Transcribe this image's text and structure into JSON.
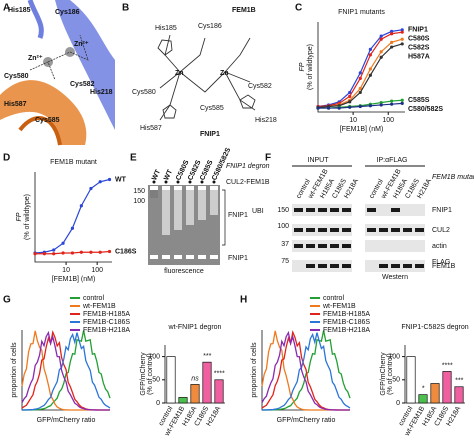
{
  "panel_letters": [
    "A",
    "B",
    "C",
    "D",
    "E",
    "F",
    "G",
    "H"
  ],
  "structure": {
    "labels": [
      "His185",
      "Cys186",
      "Zn²⁺",
      "Zn²⁺",
      "His218",
      "Cys580",
      "His587",
      "Cys582",
      "Cys585"
    ]
  },
  "scheme": {
    "fem1b": "FEM1B",
    "fnip1": "FNIP1",
    "zn": [
      "Zn",
      "Zn"
    ],
    "labels": [
      "His185",
      "Cys186",
      "Cys580",
      "Cys582",
      "Cys585",
      "His587",
      "His218"
    ]
  },
  "chart_data": [
    {
      "type": "line",
      "title": "FNIP1 mutants",
      "ylabel": "FP",
      "ylabel_sub": "(% of wildtype)",
      "xlabel": "[FEM1B] (nM)",
      "log_x": true,
      "xlim": [
        1,
        300
      ],
      "xticks": [
        10,
        100
      ],
      "ylim": [
        -5,
        110
      ],
      "x": [
        1,
        2,
        4,
        8,
        16,
        31,
        63,
        125,
        250
      ],
      "series": [
        {
          "name": "FNIP1",
          "color": "#2a45d8",
          "values": [
            2,
            4,
            8,
            20,
            45,
            75,
            92,
            98,
            100
          ]
        },
        {
          "name": "C580S",
          "color": "#e0241c",
          "values": [
            2,
            3,
            6,
            15,
            38,
            68,
            88,
            95,
            97
          ]
        },
        {
          "name": "C582S",
          "color": "#ef7a1e",
          "values": [
            1,
            2,
            4,
            10,
            25,
            50,
            72,
            84,
            88
          ]
        },
        {
          "name": "H587A",
          "color": "#333333",
          "values": [
            1,
            2,
            3,
            8,
            20,
            42,
            65,
            78,
            82
          ]
        },
        {
          "name": "C585S",
          "color": "#22a032",
          "values": [
            0,
            0,
            1,
            2,
            3,
            5,
            7,
            9,
            10
          ]
        },
        {
          "name": "C580/582S",
          "color": "#1d2f86",
          "values": [
            0,
            0,
            0,
            1,
            2,
            3,
            4,
            5,
            6
          ]
        }
      ]
    },
    {
      "type": "line",
      "title": "FEM1B mutant",
      "ylabel": "FP",
      "ylabel_sub": "(% of wildtype)",
      "xlabel": "[FEM1B] (nM)",
      "log_x": true,
      "xlim": [
        1,
        300
      ],
      "xticks": [
        10,
        100
      ],
      "ylim": [
        -10,
        110
      ],
      "x": [
        1,
        2,
        4,
        8,
        16,
        31,
        63,
        125,
        250
      ],
      "series": [
        {
          "name": "WT",
          "color": "#2a45d8",
          "values": [
            2,
            3,
            6,
            15,
            35,
            65,
            88,
            97,
            100
          ]
        },
        {
          "name": "C186S",
          "color": "#e0241c",
          "values": [
            1,
            1,
            1,
            2,
            2,
            3,
            3,
            3,
            4
          ]
        }
      ]
    },
    {
      "type": "bar",
      "title": "wt-FNIP1 degron",
      "ylabel": "GFP/mCherry",
      "ylabel_sub": "(% of control)",
      "categories": [
        "control",
        "wt-FEM1B",
        "H185A",
        "C186S",
        "H218A"
      ],
      "colors": [
        "#ffffff",
        "#4cc04c",
        "#f08a3c",
        "#f060a0",
        "#f060a0"
      ],
      "values": [
        100,
        12,
        40,
        88,
        50
      ],
      "annotations": [
        null,
        null,
        "ns",
        "***",
        "****"
      ],
      "ylim": [
        0,
        125
      ],
      "yticks": [
        0,
        50,
        100
      ]
    },
    {
      "type": "bar",
      "title": "FNIP1-C582S degron",
      "ylabel": "GFP/mCherry",
      "ylabel_sub": "(% of control)",
      "categories": [
        "control",
        "wt-FEM1B",
        "H185A",
        "C186S",
        "H218A"
      ],
      "colors": [
        "#ffffff",
        "#4cc04c",
        "#f08a3c",
        "#f060a0",
        "#f060a0"
      ],
      "values": [
        100,
        18,
        42,
        68,
        35
      ],
      "annotations": [
        null,
        "*",
        null,
        "****",
        "***"
      ],
      "ylim": [
        0,
        125
      ],
      "yticks": [
        0,
        50,
        100
      ]
    }
  ],
  "gel": {
    "lanes": [
      "WT",
      "WT",
      "C580S",
      "C582S",
      "C585S",
      "C580/582S"
    ],
    "lane_colors": [
      "#22a032",
      "#22a032",
      "#e0241c",
      "#e0241c",
      "#e0241c",
      "#e0241c"
    ],
    "degron": "FNIP1 degron",
    "ligase": "CUL2-FEM1B",
    "ubi": "FNIP1",
    "ubi_sup": "UBI",
    "free": "FNIP1",
    "method": "fluorescence",
    "markers": [
      "150",
      "100"
    ]
  },
  "western": {
    "input": "INPUT",
    "ip": "IP:αFLAG",
    "lanes": [
      "control",
      "wt-FEM1B",
      "H185A",
      "C186S",
      "H218A"
    ],
    "lane_colors": [
      "#111111",
      "#22a032",
      "#e0241c",
      "#f060a0",
      "#f060a0"
    ],
    "mutant": "FEM1B mutant",
    "bands": [
      "FNIP1",
      "CUL2",
      "actin",
      "FEM1B"
    ],
    "flag": "FLAG",
    "markers": [
      "150",
      "100",
      "37",
      "75"
    ],
    "method": "Western"
  },
  "flow": {
    "legend": [
      "control",
      "wt-FEM1B",
      "FEM1B-H185A",
      "FEM1B-C186S",
      "FEM1B-H218A"
    ],
    "colors": [
      "#22a032",
      "#ef7a1e",
      "#e0241c",
      "#2a75d8",
      "#8a2ab0"
    ],
    "ylabel": "proportion of cells",
    "xlabel": "GFP/mCherry ratio"
  }
}
